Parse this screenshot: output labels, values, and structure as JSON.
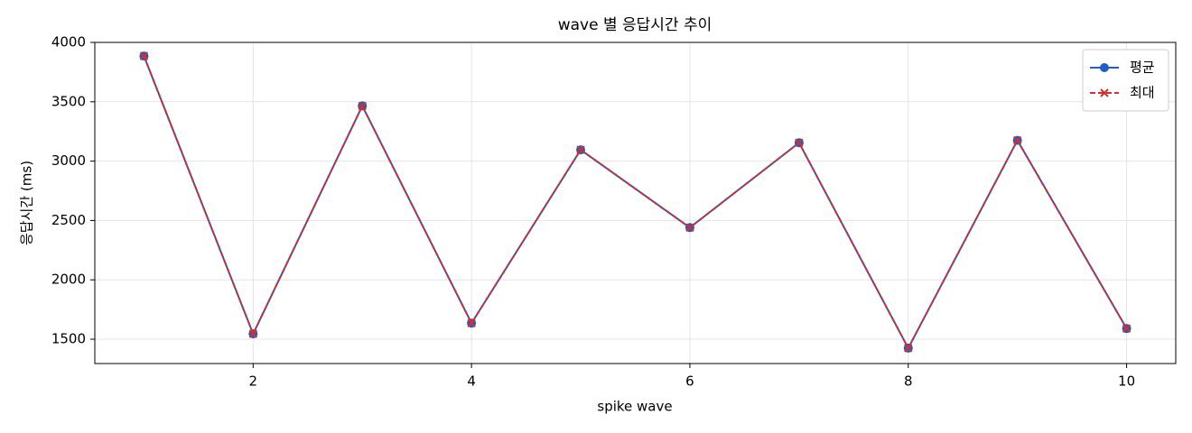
{
  "chart_data": {
    "type": "line",
    "title": "wave 별 응답시간 추이",
    "x_label": "spike wave",
    "y_label": "응답시간 (ms)",
    "x": [
      1,
      2,
      3,
      4,
      5,
      6,
      7,
      8,
      9,
      10
    ],
    "series": [
      {
        "name": "평균",
        "color": "#1f5fbf",
        "marker": "circle",
        "dash": "solid",
        "values": [
          3885,
          1545,
          3465,
          1635,
          3095,
          2440,
          3155,
          1425,
          3175,
          1590
        ]
      },
      {
        "name": "최대",
        "color": "#d03030",
        "marker": "x",
        "dash": "dashed",
        "values": [
          3885,
          1545,
          3465,
          1635,
          3095,
          2440,
          3155,
          1425,
          3175,
          1590
        ]
      }
    ],
    "xlim": [
      0.55,
      10.45
    ],
    "ylim": [
      1295,
      4000
    ],
    "xticks": [
      2,
      4,
      6,
      8,
      10
    ],
    "yticks": [
      1500,
      2000,
      2500,
      3000,
      3500,
      4000
    ],
    "grid": true,
    "legend": "upper right"
  }
}
